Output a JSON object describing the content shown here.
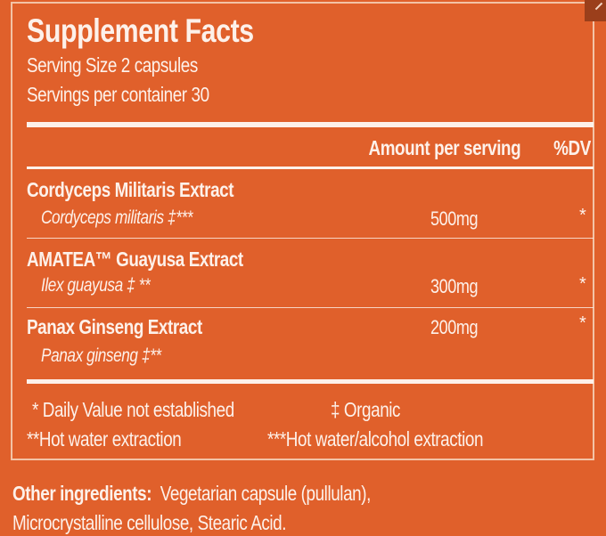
{
  "title": "Supplement Facts",
  "serving_size": "Serving Size 2 capsules",
  "servings_per_container": "Servings per container 30",
  "header": {
    "amount": "Amount per serving",
    "dv": "%DV"
  },
  "ingredients": [
    {
      "name": "Cordyceps Militaris Extract",
      "source": "Cordyceps militaris ‡***",
      "amount": "500mg",
      "dv": "*"
    },
    {
      "name": "AMATEA™ Guayusa Extract",
      "source": "Ilex guayusa ‡ **",
      "amount": "300mg",
      "dv": "*"
    },
    {
      "name": "Panax Ginseng Extract",
      "source": "Panax ginseng ‡**",
      "amount": "200mg",
      "dv": "*"
    }
  ],
  "footnotes": {
    "dv_not_established": "* Daily Value not established",
    "organic": "‡ Organic",
    "hot_water": "**Hot water extraction",
    "hot_water_alcohol": "***Hot water/alcohol extraction"
  },
  "other_ingredients": {
    "label": "Other ingredients:",
    "line1": "Vegetarian capsule (pullulan),",
    "line2": "Microcrystalline cellulose, Stearic Acid."
  },
  "colors": {
    "background": "#e0602b",
    "text": "#fdf1ea"
  }
}
